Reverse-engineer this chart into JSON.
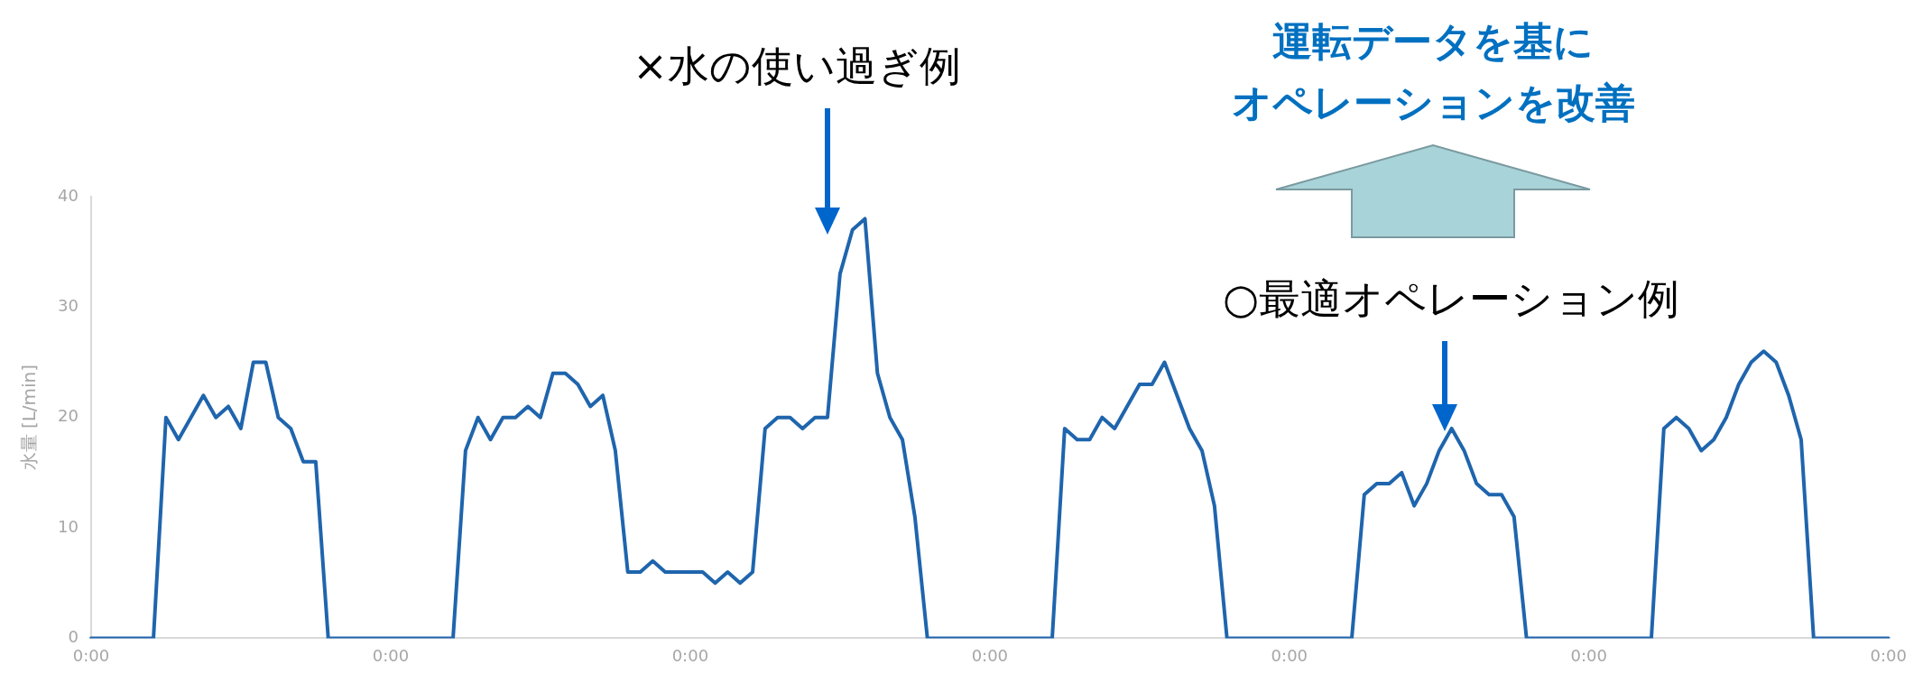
{
  "chart_data": {
    "type": "line",
    "ylabel": "水量 [L/min]",
    "categories": [
      "0:00",
      null,
      null,
      null,
      null,
      null,
      null,
      null,
      null,
      null,
      null,
      null,
      null,
      null,
      null,
      null,
      null,
      null,
      null,
      null,
      null,
      null,
      null,
      null,
      "0:00",
      null,
      null,
      null,
      null,
      null,
      null,
      null,
      null,
      null,
      null,
      null,
      null,
      null,
      null,
      null,
      null,
      null,
      null,
      null,
      null,
      null,
      null,
      null,
      "0:00",
      null,
      null,
      null,
      null,
      null,
      null,
      null,
      null,
      null,
      null,
      null,
      null,
      null,
      null,
      null,
      null,
      null,
      null,
      null,
      null,
      null,
      null,
      null,
      "0:00",
      null,
      null,
      null,
      null,
      null,
      null,
      null,
      null,
      null,
      null,
      null,
      null,
      null,
      null,
      null,
      null,
      null,
      null,
      null,
      null,
      null,
      null,
      null,
      "0:00",
      null,
      null,
      null,
      null,
      null,
      null,
      null,
      null,
      null,
      null,
      null,
      null,
      null,
      null,
      null,
      null,
      null,
      null,
      null,
      null,
      null,
      null,
      null,
      "0:00",
      null,
      null,
      null,
      null,
      null,
      null,
      null,
      null,
      null,
      null,
      null,
      null,
      null,
      null,
      null,
      null,
      null,
      null,
      null,
      null,
      null,
      null,
      null,
      "0:00"
    ],
    "series": [
      {
        "color": "#1f65ad",
        "values": [
          0,
          0,
          0,
          0,
          0,
          0,
          20,
          18,
          20,
          22,
          20,
          21,
          19,
          25,
          25,
          20,
          19,
          16,
          16,
          0,
          0,
          0,
          0,
          0,
          0,
          0,
          0,
          0,
          0,
          0,
          17,
          20,
          18,
          20,
          20,
          21,
          20,
          24,
          24,
          23,
          21,
          22,
          17,
          6,
          6,
          7,
          6,
          6,
          6,
          6,
          5,
          6,
          5,
          6,
          19,
          20,
          20,
          19,
          20,
          20,
          33,
          37,
          38,
          24,
          20,
          18,
          11,
          0,
          0,
          0,
          0,
          0,
          0,
          0,
          0,
          0,
          0,
          0,
          19,
          18,
          18,
          20,
          19,
          21,
          23,
          23,
          25,
          22,
          19,
          17,
          12,
          0,
          0,
          0,
          0,
          0,
          0,
          0,
          0,
          0,
          0,
          0,
          13,
          14,
          14,
          15,
          12,
          14,
          17,
          19,
          17,
          14,
          13,
          13,
          11,
          0,
          0,
          0,
          0,
          0,
          0,
          0,
          0,
          0,
          0,
          0,
          19,
          20,
          19,
          17,
          18,
          20,
          23,
          25,
          26,
          25,
          22,
          18,
          0,
          0,
          0,
          0,
          0,
          0,
          0
        ]
      }
    ],
    "ylim": [
      0,
      40
    ],
    "yticks": [
      0,
      10,
      20,
      30,
      40
    ],
    "grid": false,
    "legend": false,
    "marker": "none",
    "line_style": "solid",
    "annotations": [
      "×水の使い過ぎ例",
      "運転データを基に",
      "オペレーションを改善",
      "○最適オペレーション例"
    ]
  }
}
